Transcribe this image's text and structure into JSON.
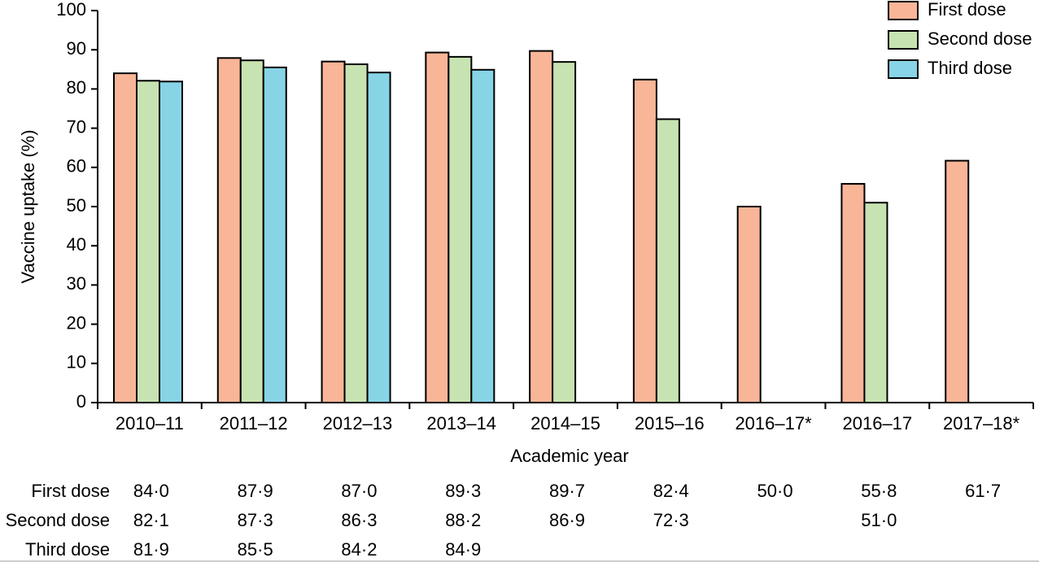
{
  "chart_data": {
    "type": "bar",
    "x_label": "Academic year",
    "y_label": "Vaccine uptake (%)",
    "categories": [
      "2010–11",
      "2011–12",
      "2012–13",
      "2013–14",
      "2014–15",
      "2015–16",
      "2016–17*",
      "2016–17",
      "2017–18*"
    ],
    "series": [
      {
        "name": "First dose",
        "color": "#f9b597",
        "values": [
          84.0,
          87.9,
          87.0,
          89.3,
          89.7,
          82.4,
          50.0,
          55.8,
          61.7
        ],
        "value_labels": [
          "84·0",
          "87·9",
          "87·0",
          "89·3",
          "89·7",
          "82·4",
          "50·0",
          "55·8",
          "61·7"
        ]
      },
      {
        "name": "Second dose",
        "color": "#c7e3b1",
        "values": [
          82.1,
          87.3,
          86.3,
          88.2,
          86.9,
          72.3,
          null,
          51.0,
          null
        ],
        "value_labels": [
          "82·1",
          "87·3",
          "86·3",
          "88·2",
          "86·9",
          "72·3",
          null,
          "51·0",
          null
        ]
      },
      {
        "name": "Third dose",
        "color": "#87d4e6",
        "values": [
          81.9,
          85.5,
          84.2,
          84.9,
          null,
          null,
          null,
          null,
          null
        ],
        "value_labels": [
          "81·9",
          "85·5",
          "84·2",
          "84·9",
          null,
          null,
          null,
          null,
          null
        ]
      }
    ],
    "ylim": [
      0,
      100
    ],
    "yticks": [
      0,
      10,
      20,
      30,
      40,
      50,
      60,
      70,
      80,
      90,
      100
    ],
    "legend": "upper right"
  }
}
